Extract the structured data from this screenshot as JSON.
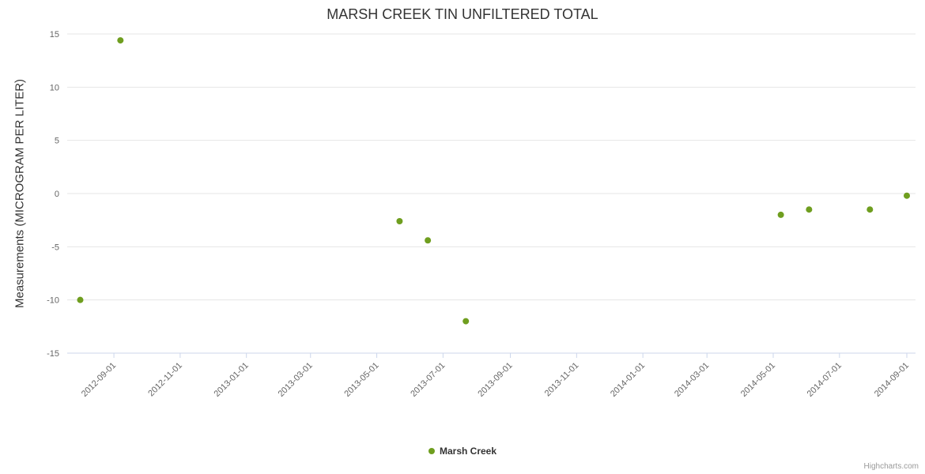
{
  "title": "MARSH CREEK TIN UNFILTERED TOTAL",
  "credits_label": "Highcharts.com",
  "legend": {
    "items": [
      {
        "label": "Marsh Creek",
        "color": "#6f9e1f"
      }
    ]
  },
  "chart_data": {
    "type": "scatter",
    "title": "MARSH CREEK TIN UNFILTERED TOTAL",
    "xlabel": "",
    "ylabel": "Measurements (MICROGRAM PER LITER)",
    "ylim": [
      -15,
      15
    ],
    "ytick_interval": 5,
    "grid": "horizontal",
    "legend_position": "bottom-center",
    "x_range": [
      "2012-07-20",
      "2014-09-09"
    ],
    "x_ticks": [
      "2012-09-01",
      "2012-11-01",
      "2013-01-01",
      "2013-03-01",
      "2013-05-01",
      "2013-07-01",
      "2013-09-01",
      "2013-11-01",
      "2014-01-01",
      "2014-03-01",
      "2014-05-01",
      "2014-07-01",
      "2014-09-01"
    ],
    "series": [
      {
        "name": "Marsh Creek",
        "color": "#6f9e1f",
        "points": [
          {
            "x": "2012-08-01",
            "y": -10
          },
          {
            "x": "2012-09-07",
            "y": 14.4
          },
          {
            "x": "2013-05-22",
            "y": -2.6
          },
          {
            "x": "2013-06-17",
            "y": -4.4
          },
          {
            "x": "2013-07-22",
            "y": -12
          },
          {
            "x": "2014-05-08",
            "y": -2
          },
          {
            "x": "2014-06-03",
            "y": -1.5
          },
          {
            "x": "2014-07-29",
            "y": -1.5
          },
          {
            "x": "2014-09-01",
            "y": -0.2
          }
        ]
      }
    ]
  }
}
